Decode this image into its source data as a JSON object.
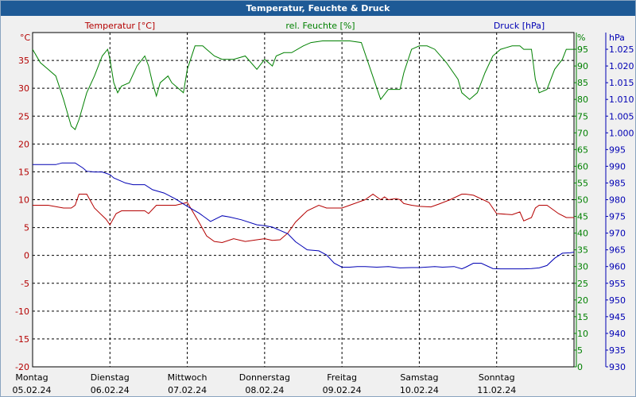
{
  "chart_data": {
    "type": "line",
    "title": "Temperatur, Feuchte & Druck",
    "x_days": [
      {
        "weekday": "Montag",
        "date": "05.02.24"
      },
      {
        "weekday": "Dienstag",
        "date": "06.02.24"
      },
      {
        "weekday": "Mittwoch",
        "date": "07.02.24"
      },
      {
        "weekday": "Donnerstag",
        "date": "08.02.24"
      },
      {
        "weekday": "Freitag",
        "date": "09.02.24"
      },
      {
        "weekday": "Samstag",
        "date": "10.02.24"
      },
      {
        "weekday": "Sonntag",
        "date": "11.02.24"
      }
    ],
    "x_range": [
      0,
      7
    ],
    "axes": {
      "temperature": {
        "unit": "°C",
        "min": -20,
        "max": 40,
        "step": 5,
        "ticks": [
          "35",
          "30",
          "25",
          "20",
          "15",
          "10",
          "5",
          "0",
          "-5",
          "-10",
          "-15",
          "-20"
        ]
      },
      "humidity": {
        "unit": "%",
        "min": 0,
        "max": 100,
        "step": 5,
        "ticks": [
          "95",
          "90",
          "85",
          "80",
          "75",
          "70",
          "65",
          "60",
          "55",
          "50",
          "45",
          "40",
          "35",
          "30",
          "25",
          "20",
          "15",
          "10",
          "5",
          "0"
        ]
      },
      "pressure": {
        "unit": "hPa",
        "min": 930,
        "max": 1030,
        "step": 5,
        "ticks": [
          "1.025",
          "1.020",
          "1.015",
          "1.010",
          "1.005",
          "1.000",
          "995",
          "990",
          "985",
          "980",
          "975",
          "970",
          "965",
          "960",
          "955",
          "950",
          "945",
          "940",
          "935",
          "930"
        ]
      }
    },
    "series": [
      {
        "name": "Temperatur [°C]",
        "axis": "temperature",
        "color": "#b40000",
        "x": [
          0,
          0.2,
          0.4,
          0.5,
          0.55,
          0.6,
          0.7,
          0.8,
          0.95,
          1.0,
          1.08,
          1.15,
          1.3,
          1.45,
          1.5,
          1.6,
          1.75,
          1.85,
          2.0,
          2.15,
          2.25,
          2.35,
          2.45,
          2.6,
          2.75,
          2.9,
          3.0,
          3.1,
          3.2,
          3.3,
          3.4,
          3.55,
          3.7,
          3.8,
          3.9,
          4.0,
          4.1,
          4.3,
          4.4,
          4.5,
          4.55,
          4.6,
          4.7,
          4.75,
          4.8,
          4.9,
          5.0,
          5.15,
          5.25,
          5.4,
          5.55,
          5.6,
          5.7,
          5.9,
          6.0,
          6.2,
          6.3,
          6.35,
          6.45,
          6.5,
          6.55,
          6.65,
          6.8,
          6.9,
          7.0
        ],
        "values": [
          9,
          9,
          8.5,
          8.5,
          9,
          11,
          11,
          8.5,
          6.5,
          5.5,
          7.5,
          8,
          8,
          8,
          7.5,
          9,
          9,
          9,
          9.5,
          6,
          3.5,
          2.5,
          2.3,
          3,
          2.5,
          2.8,
          3,
          2.7,
          2.8,
          4,
          6,
          8,
          9,
          8.5,
          8.5,
          8.5,
          9,
          10,
          11,
          10,
          10.5,
          10,
          10.2,
          10,
          9.3,
          9,
          8.8,
          8.7,
          9.2,
          10,
          11,
          11,
          10.8,
          9.5,
          7.5,
          7.3,
          7.8,
          6.2,
          6.8,
          8.5,
          9,
          9,
          7.5,
          6.8,
          6.8
        ]
      },
      {
        "name": "rel. Feuchte [%]",
        "axis": "humidity",
        "color": "#008000",
        "x": [
          0,
          0.1,
          0.2,
          0.3,
          0.4,
          0.5,
          0.55,
          0.6,
          0.7,
          0.8,
          0.9,
          0.97,
          1.0,
          1.05,
          1.1,
          1.15,
          1.25,
          1.35,
          1.45,
          1.5,
          1.55,
          1.6,
          1.65,
          1.75,
          1.8,
          1.85,
          1.95,
          2.0,
          2.1,
          2.2,
          2.25,
          2.35,
          2.45,
          2.6,
          2.75,
          2.9,
          3.0,
          3.1,
          3.15,
          3.25,
          3.35,
          3.5,
          3.6,
          3.75,
          3.9,
          4.1,
          4.25,
          4.5,
          4.6,
          4.75,
          4.8,
          4.9,
          5.0,
          5.1,
          5.2,
          5.35,
          5.5,
          5.55,
          5.65,
          5.75,
          5.85,
          5.95,
          6.05,
          6.2,
          6.3,
          6.35,
          6.45,
          6.5,
          6.55,
          6.65,
          6.75,
          6.85,
          6.9,
          7.0
        ],
        "values": [
          95,
          91,
          89,
          87,
          80,
          72,
          71,
          74,
          82,
          87,
          93,
          95,
          92,
          85,
          82,
          84,
          85,
          90,
          93,
          90,
          85,
          81,
          85,
          87,
          85,
          84,
          82,
          89,
          96,
          96,
          95,
          93,
          92,
          92,
          93,
          89,
          92,
          90,
          93,
          94,
          94,
          96,
          97,
          97.5,
          97.5,
          97.5,
          97,
          80,
          83,
          83,
          88,
          95,
          96,
          96,
          95,
          91,
          86,
          82,
          80,
          82,
          88,
          93,
          95,
          96,
          96,
          95,
          95,
          86,
          82,
          83,
          89,
          92,
          95,
          95
        ]
      },
      {
        "name": "Druck [hPa]",
        "axis": "pressure",
        "color": "#0000b4",
        "x": [
          0,
          0.3,
          0.38,
          0.45,
          0.55,
          0.65,
          0.7,
          0.8,
          0.9,
          1.0,
          1.05,
          1.2,
          1.3,
          1.45,
          1.55,
          1.7,
          1.85,
          2.0,
          2.15,
          2.3,
          2.45,
          2.55,
          2.7,
          2.9,
          3.0,
          3.1,
          3.2,
          3.3,
          3.4,
          3.55,
          3.7,
          3.8,
          3.9,
          4.0,
          4.1,
          4.2,
          4.3,
          4.45,
          4.6,
          4.75,
          4.9,
          5.0,
          5.2,
          5.3,
          5.45,
          5.55,
          5.6,
          5.7,
          5.8,
          5.95,
          6.05,
          6.2,
          6.35,
          6.45,
          6.55,
          6.65,
          6.75,
          6.85,
          6.95,
          7.0
        ],
        "values": [
          990.5,
          990.5,
          991,
          991,
          991,
          989.5,
          988.5,
          988.3,
          988.3,
          987.5,
          986.5,
          985,
          984.5,
          984.5,
          983,
          982,
          980.2,
          978,
          976,
          973.5,
          975.2,
          974.8,
          974,
          972.5,
          972.2,
          971.8,
          970.8,
          969.8,
          967.4,
          965,
          964.7,
          963.5,
          961,
          959.8,
          959.8,
          960,
          960,
          959.8,
          960,
          959.6,
          959.7,
          959.7,
          960,
          959.8,
          960,
          959.3,
          959.8,
          961,
          961,
          959.4,
          959.3,
          959.3,
          959.3,
          959.4,
          959.6,
          960.3,
          962.5,
          964,
          964.1,
          964.3
        ]
      }
    ]
  }
}
